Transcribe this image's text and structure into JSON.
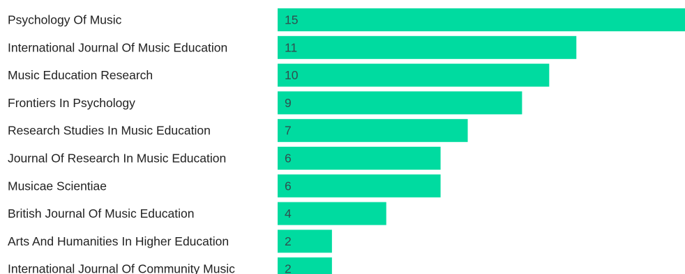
{
  "chart_data": {
    "type": "bar",
    "orientation": "horizontal",
    "categories": [
      "Psychology Of Music",
      "International Journal Of Music Education",
      "Music Education Research",
      "Frontiers In Psychology",
      "Research Studies In Music Education",
      "Journal Of Research In Music Education",
      "Musicae Scientiae",
      "British Journal Of Music Education",
      "Arts And Humanities In Higher Education",
      "International Journal Of Community Music"
    ],
    "values": [
      15,
      11,
      10,
      9,
      7,
      6,
      6,
      4,
      2,
      2
    ],
    "xlim": [
      0,
      15
    ],
    "grid": false,
    "legend": "none",
    "data_labels": "inside-left",
    "colors": {
      "bar": "#00dba0",
      "label_text": "#222222",
      "value_text": "#2f4f4f"
    }
  }
}
